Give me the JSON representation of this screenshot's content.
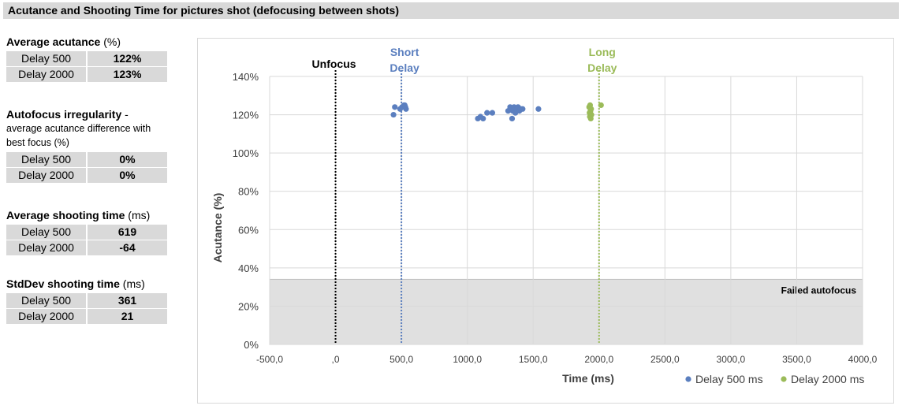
{
  "title": "Acutance and Shooting Time for pictures shot (defocusing between shots)",
  "stats": [
    {
      "heading": "Average acutance",
      "unit": "(%)",
      "description": "",
      "rows": [
        {
          "label": "Delay 500",
          "value": "122%"
        },
        {
          "label": "Delay 2000",
          "value": "123%"
        }
      ]
    },
    {
      "heading": "Autofocus irregularity",
      "unit": "-",
      "description": "average acutance difference with best focus (%)",
      "rows": [
        {
          "label": "Delay 500",
          "value": "0%"
        },
        {
          "label": "Delay 2000",
          "value": "0%"
        }
      ]
    },
    {
      "heading": "Average shooting time",
      "unit": "(ms)",
      "description": "",
      "rows": [
        {
          "label": "Delay 500",
          "value": "619"
        },
        {
          "label": "Delay 2000",
          "value": "-64"
        }
      ]
    },
    {
      "heading": "StdDev shooting time",
      "unit": "(ms)",
      "description": "",
      "rows": [
        {
          "label": "Delay 500",
          "value": "361"
        },
        {
          "label": "Delay 2000",
          "value": "21"
        }
      ]
    }
  ],
  "chart_data": {
    "type": "scatter",
    "title": "",
    "xlabel": "Time (ms)",
    "ylabel": "Acutance (%)",
    "xlim": [
      -500,
      4000
    ],
    "ylim": [
      0,
      140
    ],
    "x_ticks": [
      -500,
      0,
      500,
      1000,
      1500,
      2000,
      2500,
      3000,
      3500,
      4000
    ],
    "x_tick_labels": [
      "-500,0",
      ",0",
      "500,0",
      "1000,0",
      "1500,0",
      "2000,0",
      "2500,0",
      "3000,0",
      "3500,0",
      "4000,0"
    ],
    "y_ticks": [
      0,
      20,
      40,
      60,
      80,
      100,
      120,
      140
    ],
    "y_tick_labels": [
      "0%",
      "20%",
      "40%",
      "60%",
      "80%",
      "100%",
      "120%",
      "140%"
    ],
    "grid": true,
    "legend_position": "bottom-right",
    "series": [
      {
        "name": "Delay 500 ms",
        "color": "#5b7fbf",
        "points": [
          [
            440,
            120
          ],
          [
            450,
            124
          ],
          [
            490,
            123
          ],
          [
            505,
            124
          ],
          [
            520,
            125
          ],
          [
            530,
            124
          ],
          [
            535,
            123
          ],
          [
            525,
            125
          ],
          [
            1080,
            118
          ],
          [
            1100,
            119
          ],
          [
            1120,
            118
          ],
          [
            1150,
            121
          ],
          [
            1190,
            121
          ],
          [
            1310,
            122
          ],
          [
            1325,
            124
          ],
          [
            1335,
            123
          ],
          [
            1340,
            118
          ],
          [
            1345,
            122
          ],
          [
            1355,
            124
          ],
          [
            1365,
            121
          ],
          [
            1375,
            123
          ],
          [
            1385,
            124
          ],
          [
            1395,
            122
          ],
          [
            1405,
            123
          ],
          [
            1420,
            123
          ],
          [
            1540,
            123
          ]
        ]
      },
      {
        "name": "Delay 2000 ms",
        "color": "#9bbb59",
        "points": [
          [
            1925,
            124
          ],
          [
            1928,
            121
          ],
          [
            1930,
            119
          ],
          [
            1932,
            125
          ],
          [
            1935,
            122
          ],
          [
            1937,
            118
          ],
          [
            1940,
            123
          ],
          [
            1942,
            120
          ],
          [
            2015,
            125
          ]
        ]
      }
    ],
    "reference_lines": [
      {
        "x": 0,
        "label": "Unfocus",
        "color": "#000000"
      },
      {
        "x": 500,
        "label": "Short Delay",
        "color": "#5b7fbf"
      },
      {
        "x": 2000,
        "label": "Long Delay",
        "color": "#9bbb59"
      }
    ],
    "failed_region": {
      "y_max": 34,
      "label": "Failed autofocus",
      "color": "#e0e0e0"
    }
  }
}
